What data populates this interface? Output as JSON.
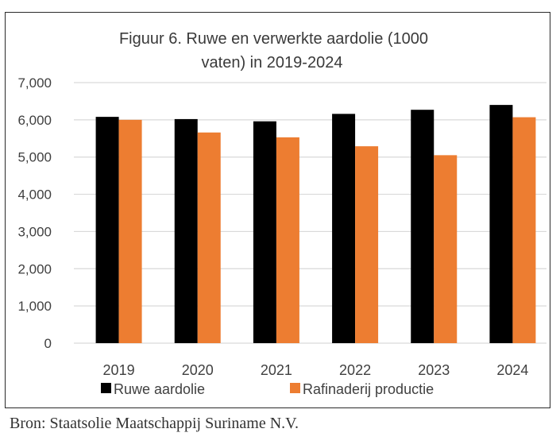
{
  "chart_data": {
    "type": "bar",
    "title": "Figuur  6. Ruwe en verwerkte aardolie (1000 vaten) in 2019-2024",
    "title_lines": [
      "Figuur  6. Ruwe en verwerkte aardolie (1000",
      "vaten) in 2019-2024"
    ],
    "xlabel": "",
    "ylabel": "",
    "ylim": [
      0,
      7000
    ],
    "yticks": [
      0,
      1000,
      2000,
      3000,
      4000,
      5000,
      6000,
      7000
    ],
    "ytick_labels": [
      "0",
      "1,000",
      "2,000",
      "3,000",
      "4,000",
      "5,000",
      "6,000",
      "7,000"
    ],
    "grid": true,
    "legend_position": "bottom",
    "categories": [
      "2019",
      "2020",
      "2021",
      "2022",
      "2023",
      "2024"
    ],
    "series": [
      {
        "name": "Ruwe aardolie",
        "color": "#000000",
        "values": [
          6080,
          6020,
          5960,
          6160,
          6270,
          6400
        ]
      },
      {
        "name": "Rafinaderij productie",
        "color": "#ED7D31",
        "values": [
          6000,
          5660,
          5530,
          5290,
          5050,
          6070
        ]
      }
    ]
  },
  "source": "Bron: Staatsolie Maatschappij Suriname N.V."
}
